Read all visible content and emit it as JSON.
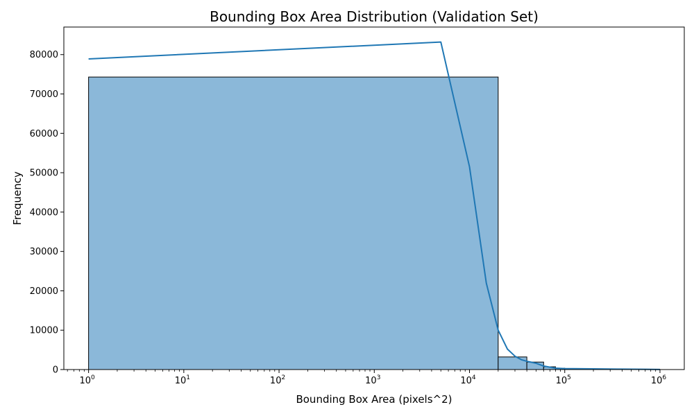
{
  "chart_data": {
    "type": "bar",
    "title": "Bounding Box Area Distribution (Validation Set)",
    "xlabel": "Bounding Box Area (pixels^2)",
    "ylabel": "Frequency",
    "x_scale": "log",
    "xlim": [
      0.55,
      1800000
    ],
    "ylim": [
      0,
      87000
    ],
    "x_ticks": [
      {
        "value": 1,
        "base": "10",
        "exp": "0"
      },
      {
        "value": 10,
        "base": "10",
        "exp": "1"
      },
      {
        "value": 100,
        "base": "10",
        "exp": "2"
      },
      {
        "value": 1000,
        "base": "10",
        "exp": "3"
      },
      {
        "value": 10000,
        "base": "10",
        "exp": "4"
      },
      {
        "value": 100000,
        "base": "10",
        "exp": "5"
      },
      {
        "value": 1000000,
        "base": "10",
        "exp": "6"
      }
    ],
    "y_ticks": [
      0,
      10000,
      20000,
      30000,
      40000,
      50000,
      60000,
      70000,
      80000
    ],
    "grid": false,
    "histogram_bins": [
      {
        "x0": 1,
        "x1": 20000,
        "count": 74300
      },
      {
        "x0": 20000,
        "x1": 40000,
        "count": 3200
      },
      {
        "x0": 40000,
        "x1": 60000,
        "count": 1900
      },
      {
        "x0": 60000,
        "x1": 80000,
        "count": 700
      },
      {
        "x0": 80000,
        "x1": 100000,
        "count": 350
      },
      {
        "x0": 100000,
        "x1": 200000,
        "count": 200
      },
      {
        "x0": 200000,
        "x1": 400000,
        "count": 80
      },
      {
        "x0": 400000,
        "x1": 700000,
        "count": 40
      },
      {
        "x0": 700000,
        "x1": 1000000,
        "count": 20
      }
    ],
    "kde_line": {
      "x": [
        1,
        5000,
        10000,
        15000,
        20000,
        25000,
        30000,
        35000,
        40000,
        50000,
        60000,
        70000,
        80000,
        100000,
        200000,
        400000,
        700000,
        1000000
      ],
      "y": [
        78900,
        83200,
        51500,
        22000,
        10000,
        5200,
        3400,
        2500,
        2100,
        1600,
        900,
        600,
        350,
        250,
        180,
        100,
        60,
        20
      ]
    },
    "colors": {
      "bar_fill": "#8bb8d9",
      "bar_edge": "#000000",
      "line": "#1f77b4"
    }
  }
}
